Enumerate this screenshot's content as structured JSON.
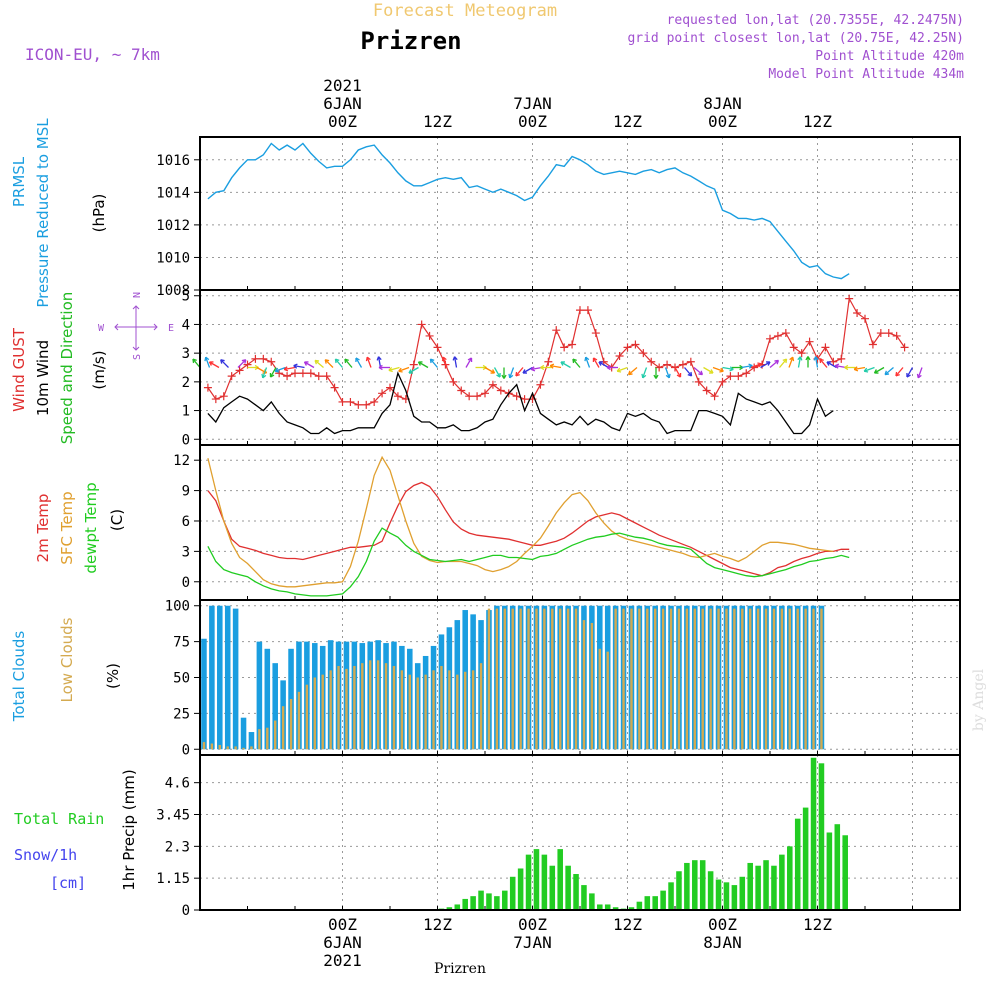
{
  "header": {
    "forecast_title": "Forecast Meteogram",
    "location": "Prizren",
    "model": "ICON-EU, ~ 7km",
    "requested": "requested lon,lat (20.7355E, 42.2475N)",
    "grid_point": "grid point closest lon,lat (20.75E, 42.25N)",
    "point_altitude": "Point Altitude 420m",
    "model_altitude": "Model Point Altitude 434m"
  },
  "footer": {
    "location": "Prizren",
    "watermark": "by Angel"
  },
  "time_axis": {
    "hours_start": -18,
    "hours_end": 78,
    "top_labels": [
      {
        "h": 0,
        "lines": [
          "2021",
          "6JAN",
          "00Z"
        ]
      },
      {
        "h": 12,
        "lines": [
          "12Z"
        ]
      },
      {
        "h": 24,
        "lines": [
          "7JAN",
          "00Z"
        ]
      },
      {
        "h": 36,
        "lines": [
          "12Z"
        ]
      },
      {
        "h": 48,
        "lines": [
          "8JAN",
          "00Z"
        ]
      },
      {
        "h": 60,
        "lines": [
          "12Z"
        ]
      }
    ],
    "bottom_labels": [
      {
        "h": 0,
        "lines": [
          "00Z",
          "6JAN",
          "2021"
        ]
      },
      {
        "h": 12,
        "lines": [
          "12Z"
        ]
      },
      {
        "h": 24,
        "lines": [
          "00Z",
          "7JAN"
        ]
      },
      {
        "h": 36,
        "lines": [
          "12Z"
        ]
      },
      {
        "h": 48,
        "lines": [
          "00Z",
          "8JAN"
        ]
      },
      {
        "h": 60,
        "lines": [
          "12Z"
        ]
      }
    ]
  },
  "colors": {
    "pressure": "#1a9ee0",
    "gust": "#e03030",
    "wind": "#000000",
    "wind_dir": "#22bb22",
    "temp2m": "#e03030",
    "sfc": "#e0a030",
    "dewpt": "#20cc20",
    "total_clouds": "#1a9ee0",
    "low_clouds": "#d4aa50",
    "rain": "#22cc22",
    "snow": "#4444ee",
    "header_orange": "#f0c870",
    "header_purple": "#a050d0"
  },
  "chart_data": [
    {
      "type": "line",
      "panel": "pressure",
      "ylabels": [
        "PRMSL",
        "Pressure Reduced to MSL",
        "(hPa)"
      ],
      "ylim": [
        1008,
        1017.4
      ],
      "yticks": [
        "1008",
        "1010",
        "1012",
        "1014",
        "1016"
      ],
      "x_start": -17,
      "x_step": 1,
      "series": [
        {
          "values": [
            1013.6,
            1014.0,
            1014.1,
            1014.9,
            1015.5,
            1016.0,
            1016.0,
            1016.3,
            1017.0,
            1016.6,
            1016.9,
            1016.6,
            1017.0,
            1016.4,
            1015.9,
            1015.5,
            1015.6,
            1015.6,
            1016.0,
            1016.6,
            1016.8,
            1016.9,
            1016.3,
            1015.8,
            1015.2,
            1014.7,
            1014.4,
            1014.4,
            1014.6,
            1014.8,
            1014.9,
            1014.8,
            1014.9,
            1014.3,
            1014.4,
            1014.2,
            1014.0,
            1014.2,
            1014.0,
            1013.8,
            1013.5,
            1013.7,
            1014.4,
            1015.0,
            1015.7,
            1015.6,
            1016.2,
            1016.0,
            1015.7,
            1015.3,
            1015.1,
            1015.2,
            1015.3,
            1015.2,
            1015.1,
            1015.3,
            1015.4,
            1015.2,
            1015.4,
            1015.5,
            1015.2,
            1015.0,
            1014.7,
            1014.4,
            1014.2,
            1012.9,
            1012.7,
            1012.4,
            1012.4,
            1012.3,
            1012.4,
            1012.2,
            1011.6,
            1011.0,
            1010.4,
            1009.7,
            1009.4,
            1009.5,
            1009.0,
            1008.8,
            1008.7,
            1009.0
          ]
        }
      ]
    },
    {
      "type": "line",
      "panel": "wind",
      "ylabels": [
        "Wind GUST",
        "10m Wind",
        "Speed and Direction",
        "(m/s)"
      ],
      "compass": {
        "n": "N",
        "s": "S",
        "w": "W",
        "e": "E"
      },
      "ylim": [
        -0.2,
        5.2
      ],
      "yticks": [
        "0",
        "1",
        "2",
        "3",
        "4",
        "5"
      ],
      "x_start": -17,
      "x_step": 1,
      "series": [
        {
          "values": [
            1.8,
            1.4,
            1.5,
            2.2,
            2.4,
            2.6,
            2.8,
            2.8,
            2.7,
            2.3,
            2.2,
            2.3,
            2.3,
            2.3,
            2.2,
            2.2,
            1.8,
            1.3,
            1.3,
            1.2,
            1.2,
            1.3,
            1.6,
            1.8,
            1.5,
            1.4,
            2.6,
            4.0,
            3.6,
            3.2,
            2.6,
            2.0,
            1.7,
            1.5,
            1.5,
            1.6,
            1.9,
            1.7,
            1.6,
            1.5,
            1.4,
            1.4,
            1.9,
            2.7,
            3.8,
            3.2,
            3.3,
            4.5,
            4.5,
            3.7,
            2.7,
            2.5,
            2.9,
            3.2,
            3.3,
            3.0,
            2.7,
            2.5,
            2.6,
            2.5,
            2.6,
            2.7,
            2.0,
            1.7,
            1.5,
            2.0,
            2.2,
            2.2,
            2.3,
            2.5,
            2.6,
            3.5,
            3.6,
            3.7,
            3.2,
            3.0,
            3.4,
            2.8,
            3.2,
            2.7,
            2.8,
            4.9,
            4.4,
            4.2,
            3.3,
            3.7,
            3.7,
            3.6,
            3.2
          ]
        },
        {
          "values": [
            0.9,
            0.6,
            1.1,
            1.3,
            1.5,
            1.4,
            1.2,
            1.0,
            1.3,
            0.9,
            0.6,
            0.5,
            0.4,
            0.2,
            0.2,
            0.4,
            0.2,
            0.3,
            0.3,
            0.4,
            0.4,
            0.4,
            0.9,
            1.2,
            2.3,
            1.7,
            0.8,
            0.6,
            0.6,
            0.4,
            0.4,
            0.5,
            0.3,
            0.3,
            0.4,
            0.6,
            0.7,
            1.2,
            1.6,
            1.9,
            1.0,
            1.6,
            0.9,
            0.7,
            0.5,
            0.6,
            0.5,
            0.8,
            0.5,
            0.7,
            0.6,
            0.4,
            0.3,
            0.9,
            0.8,
            0.9,
            0.7,
            0.6,
            0.2,
            0.3,
            0.3,
            0.3,
            1.0,
            1.0,
            0.9,
            0.8,
            0.5,
            1.6,
            1.4,
            1.3,
            1.2,
            1.3,
            1.0,
            0.6,
            0.2,
            0.2,
            0.5,
            1.4,
            0.8,
            1.0
          ]
        }
      ],
      "direction_arrows_deg": [
        320,
        340,
        300,
        315,
        45,
        90,
        120,
        200,
        210,
        250,
        260,
        280,
        300,
        310,
        315,
        320,
        320,
        330,
        340,
        350,
        270,
        255,
        250,
        240,
        300,
        320,
        340,
        350,
        30,
        90,
        120,
        150,
        180,
        200,
        220,
        240,
        260,
        270,
        280,
        300,
        320,
        340,
        330,
        300,
        270,
        250,
        230,
        200,
        180,
        160,
        150,
        140,
        130,
        120,
        110,
        100,
        90,
        80,
        70,
        60,
        50,
        40,
        20,
        10,
        0,
        350,
        320,
        300,
        280,
        270,
        260,
        250,
        240,
        230,
        220,
        210,
        200
      ]
    },
    {
      "type": "line",
      "panel": "temperature",
      "ylabels": [
        "2m Temp",
        "SFC Temp",
        "dewpt Temp",
        "(C)"
      ],
      "ylim": [
        -1.8,
        13.5
      ],
      "yticks": [
        "0",
        "3",
        "6",
        "9",
        "12"
      ],
      "x_start": -17,
      "x_step": 1,
      "series": [
        {
          "values": [
            9.0,
            8.0,
            6.0,
            4.2,
            3.5,
            3.3,
            3.1,
            2.8,
            2.6,
            2.4,
            2.3,
            2.3,
            2.2,
            2.4,
            2.6,
            2.8,
            3.0,
            3.2,
            3.4,
            3.4,
            3.5,
            3.6,
            4.0,
            5.8,
            7.5,
            8.9,
            9.5,
            9.8,
            9.4,
            8.4,
            7.1,
            5.9,
            5.2,
            4.8,
            4.6,
            4.5,
            4.4,
            4.3,
            4.2,
            4.0,
            3.8,
            3.6,
            3.6,
            3.8,
            4.0,
            4.3,
            4.8,
            5.4,
            6.0,
            6.4,
            6.6,
            6.8,
            6.6,
            6.2,
            5.8,
            5.4,
            5.0,
            4.6,
            4.3,
            4.0,
            3.7,
            3.4,
            3.0,
            2.6,
            2.2,
            1.8,
            1.4,
            1.2,
            1.0,
            0.8,
            0.6,
            0.9,
            1.4,
            1.6,
            2.0,
            2.3,
            2.5,
            2.8,
            3.0,
            3.0,
            3.2,
            3.2
          ]
        },
        {
          "values": [
            12.2,
            9.0,
            6.0,
            3.8,
            2.4,
            1.8,
            1.0,
            0.2,
            -0.2,
            -0.4,
            -0.5,
            -0.5,
            -0.4,
            -0.3,
            -0.2,
            -0.1,
            -0.1,
            0.0,
            1.5,
            4.0,
            7.2,
            10.5,
            12.3,
            11.0,
            8.5,
            6.0,
            3.8,
            2.5,
            2.1,
            1.9,
            2.0,
            2.0,
            2.0,
            1.8,
            1.6,
            1.2,
            1.0,
            1.2,
            1.5,
            2.0,
            2.8,
            3.5,
            4.3,
            5.5,
            6.8,
            7.8,
            8.6,
            8.8,
            8.0,
            6.8,
            5.8,
            5.0,
            4.5,
            4.2,
            4.0,
            3.8,
            3.6,
            3.4,
            3.2,
            3.0,
            2.8,
            2.5,
            2.4,
            2.6,
            2.8,
            2.5,
            2.3,
            2.0,
            2.4,
            3.0,
            3.6,
            3.9,
            3.9,
            3.8,
            3.7,
            3.5,
            3.3,
            3.2,
            3.1,
            3.0
          ]
        },
        {
          "values": [
            3.5,
            2.0,
            1.2,
            0.9,
            0.7,
            0.5,
            0.0,
            -0.4,
            -0.7,
            -0.9,
            -1.0,
            -1.2,
            -1.3,
            -1.4,
            -1.4,
            -1.4,
            -1.3,
            -1.2,
            -0.5,
            0.5,
            2.0,
            4.0,
            5.3,
            4.8,
            4.4,
            3.6,
            3.0,
            2.6,
            2.2,
            2.1,
            2.0,
            2.1,
            2.2,
            2.0,
            2.2,
            2.4,
            2.6,
            2.6,
            2.4,
            2.4,
            2.3,
            2.2,
            2.5,
            2.6,
            2.8,
            3.2,
            3.6,
            3.9,
            4.2,
            4.4,
            4.5,
            4.7,
            4.8,
            4.6,
            4.4,
            4.3,
            4.1,
            3.8,
            3.6,
            3.5,
            3.4,
            3.2,
            2.5,
            1.8,
            1.4,
            1.2,
            1.0,
            0.8,
            0.6,
            0.5,
            0.6,
            0.8,
            1.0,
            1.2,
            1.5,
            1.7,
            2.0,
            2.1,
            2.3,
            2.4,
            2.6,
            2.4
          ]
        }
      ]
    },
    {
      "type": "bar",
      "panel": "clouds",
      "ylabels": [
        "Total Clouds",
        "Low Clouds",
        "(%)"
      ],
      "ylim": [
        -4,
        104
      ],
      "yticks": [
        "0",
        "25",
        "50",
        "75",
        "100"
      ],
      "x_start": -18,
      "x_step": 1,
      "series": [
        {
          "values": [
            77,
            100,
            100,
            100,
            98,
            22,
            12,
            75,
            70,
            60,
            48,
            70,
            75,
            75,
            74,
            72,
            76,
            75,
            75,
            75,
            74,
            75,
            76,
            74,
            75,
            72,
            70,
            60,
            65,
            72,
            80,
            85,
            90,
            97,
            94,
            90,
            97,
            100,
            100,
            100,
            100,
            100,
            100,
            100,
            100,
            100,
            100,
            100,
            100,
            100,
            100,
            100,
            100,
            100,
            100,
            100,
            100,
            100,
            100,
            100,
            100,
            100,
            100,
            100,
            100,
            100,
            100,
            100,
            100,
            100,
            100,
            100,
            100,
            100,
            100,
            100,
            100,
            100,
            100
          ]
        },
        {
          "values": [
            5,
            4,
            3,
            2,
            2,
            1,
            2,
            14,
            15,
            20,
            30,
            35,
            40,
            45,
            50,
            52,
            55,
            58,
            56,
            58,
            60,
            62,
            62,
            60,
            58,
            55,
            52,
            50,
            52,
            55,
            58,
            55,
            52,
            54,
            55,
            60,
            98,
            98,
            98,
            98,
            98,
            98,
            98,
            98,
            98,
            98,
            98,
            98,
            90,
            88,
            70,
            68,
            98,
            98,
            98,
            98,
            98,
            98,
            98,
            98,
            98,
            98,
            98,
            98,
            98,
            98,
            98,
            98,
            98,
            98,
            98,
            98,
            98,
            98,
            98,
            98,
            98,
            98,
            98
          ]
        }
      ]
    },
    {
      "type": "bar",
      "panel": "precip",
      "ylabels": [
        "1hr Precip (mm)"
      ],
      "left_labels": [
        "Total  Rain",
        "Snow/1h",
        "[cm]"
      ],
      "ylim": [
        0,
        5.6
      ],
      "yticks": [
        "0",
        "1.15",
        "2.3",
        "3.45",
        "4.6"
      ],
      "x_start": -18,
      "x_step": 1,
      "series": [
        {
          "values": [
            0,
            0,
            0,
            0,
            0,
            0,
            0,
            0,
            0,
            0,
            0,
            0,
            0,
            0,
            0,
            0,
            0,
            0,
            0,
            0,
            0,
            0,
            0,
            0,
            0,
            0,
            0,
            0,
            0,
            0,
            0.05,
            0.1,
            0.2,
            0.4,
            0.5,
            0.7,
            0.6,
            0.5,
            0.7,
            1.2,
            1.5,
            2.0,
            2.2,
            2.0,
            1.6,
            2.2,
            1.6,
            1.3,
            0.9,
            0.6,
            0.2,
            0.2,
            0.1,
            0.05,
            0.1,
            0.3,
            0.5,
            0.5,
            0.7,
            1.0,
            1.4,
            1.7,
            1.8,
            1.8,
            1.4,
            1.1,
            1.0,
            0.9,
            1.2,
            1.7,
            1.6,
            1.8,
            1.6,
            2.0,
            2.3,
            3.3,
            3.7,
            5.5,
            5.3,
            2.8,
            3.1,
            2.7
          ]
        }
      ]
    }
  ]
}
